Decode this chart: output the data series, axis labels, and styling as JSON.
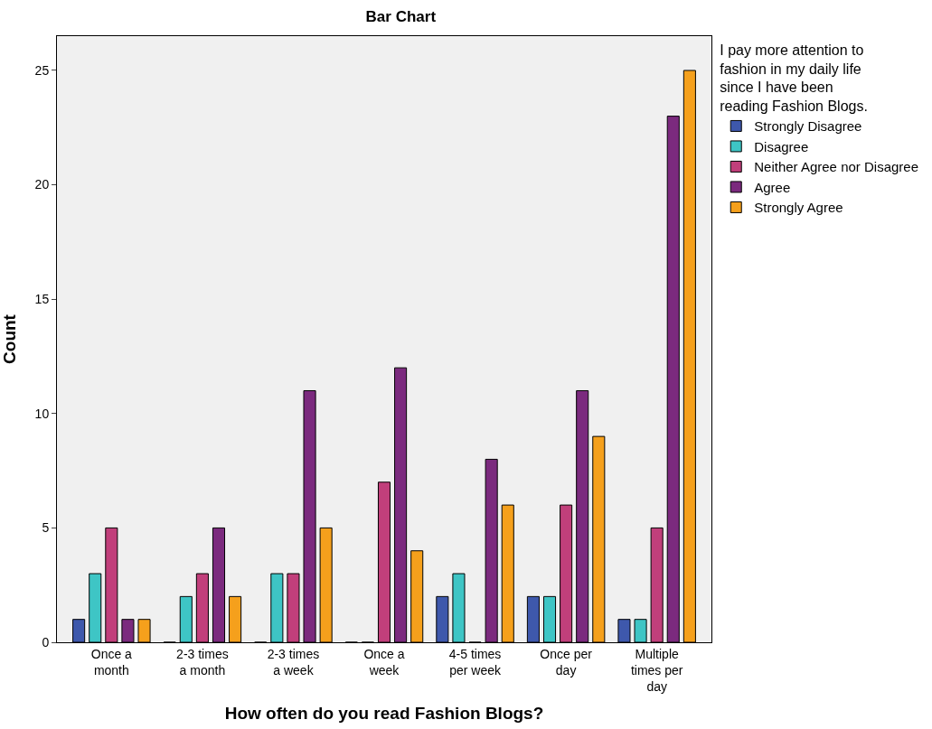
{
  "chart_data": {
    "type": "bar",
    "title": "Bar Chart",
    "xlabel": "How often do you read Fashion Blogs?",
    "ylabel": "Count",
    "legend_title": "I pay more attention to fashion in my daily life since I have been reading Fashion Blogs.",
    "legend": "top right",
    "grid": false,
    "categories": [
      "Once a month",
      "2-3 times a month",
      "2-3 times a week",
      "Once a week",
      "4-5 times per week",
      "Once per day",
      "Multiple times per day"
    ],
    "ylim": [
      0,
      26.5
    ],
    "yticks": [
      0,
      5,
      10,
      15,
      20,
      25
    ],
    "series": [
      {
        "name": "Strongly Disagree",
        "color": "#3e58ac",
        "values": [
          1,
          0,
          0,
          0,
          2,
          2,
          1
        ]
      },
      {
        "name": "Disagree",
        "color": "#3ec5c5",
        "values": [
          3,
          2,
          3,
          0,
          3,
          2,
          1
        ]
      },
      {
        "name": "Neither Agree nor Disagree",
        "color": "#c13f7b",
        "values": [
          5,
          3,
          3,
          7,
          0,
          6,
          5
        ]
      },
      {
        "name": "Agree",
        "color": "#7b2a7e",
        "values": [
          1,
          5,
          11,
          12,
          8,
          11,
          23
        ]
      },
      {
        "name": "Strongly Agree",
        "color": "#f5a01c",
        "values": [
          1,
          2,
          5,
          4,
          6,
          9,
          25
        ]
      }
    ]
  }
}
